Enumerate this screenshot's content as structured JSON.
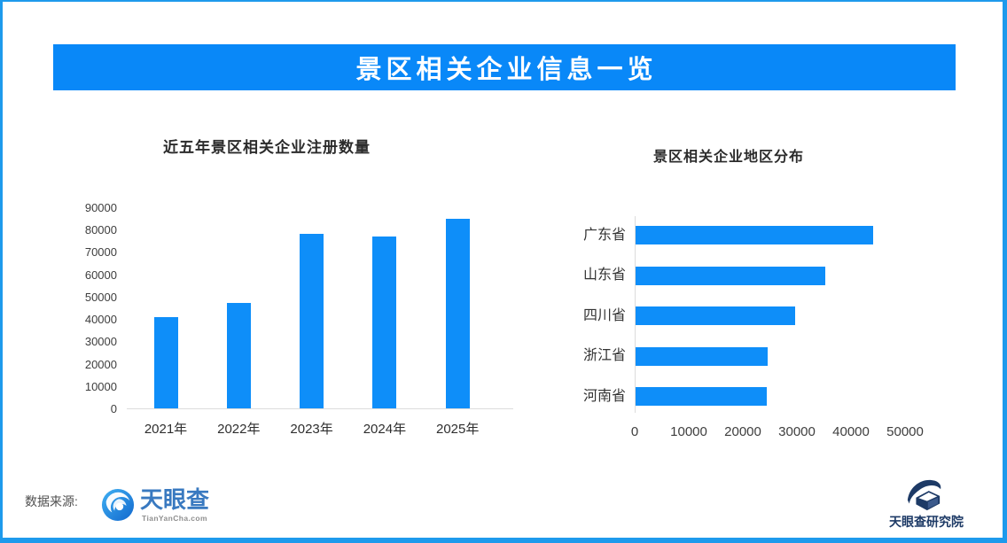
{
  "banner": {
    "title": "景区相关企业信息一览"
  },
  "chart_data": [
    {
      "type": "bar",
      "title": "近五年景区相关企业注册数量",
      "categories": [
        "2021年",
        "2022年",
        "2023年",
        "2024年",
        "2025年"
      ],
      "values": [
        41000,
        47000,
        78000,
        77000,
        85000
      ],
      "xlabel": "",
      "ylabel": "",
      "ylim": [
        0,
        90000
      ],
      "yticks": [
        0,
        10000,
        20000,
        30000,
        40000,
        50000,
        60000,
        70000,
        80000,
        90000
      ],
      "grid": false,
      "legend": "none",
      "bar_color": "#0e8ef9"
    },
    {
      "type": "bar",
      "orientation": "horizontal",
      "title": "景区相关企业地区分布",
      "categories": [
        "广东省",
        "山东省",
        "四川省",
        "浙江省",
        "河南省"
      ],
      "values": [
        44000,
        35000,
        29500,
        24500,
        24200
      ],
      "xlabel": "",
      "ylabel": "",
      "xlim": [
        0,
        50000
      ],
      "xticks": [
        0,
        10000,
        20000,
        30000,
        40000,
        50000
      ],
      "grid": false,
      "legend": "none",
      "bar_color": "#0e8ef9"
    }
  ],
  "footer": {
    "source_label": "数据来源:",
    "brand_name": "天眼查",
    "brand_domain": "TianYanCha.com",
    "institute_name": "天眼查研究院"
  },
  "colors": {
    "banner_bg": "#0988f8",
    "banner_text": "#ffffff",
    "bar": "#0e8ef9",
    "page_border": "#1e9aec",
    "brand_blue": "#3979c0",
    "institute_navy": "#1d3a66",
    "axis_line": "#dcdcdc"
  }
}
